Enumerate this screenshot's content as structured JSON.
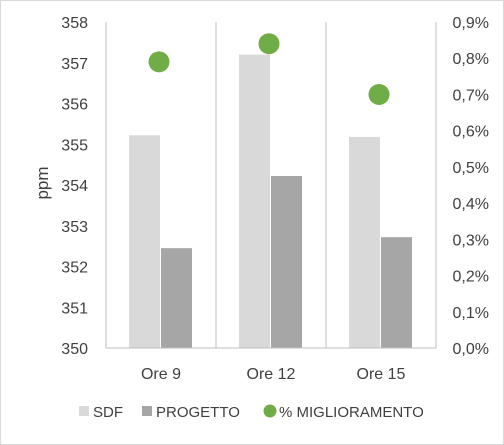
{
  "chart_data": {
    "type": "bar",
    "categories": [
      "Ore 9",
      "Ore 12",
      "Ore 15"
    ],
    "series": [
      {
        "name": "SDF",
        "type": "bar",
        "axis": "left",
        "color": "#d9d9d9",
        "values": [
          355.22,
          357.2,
          355.18
        ]
      },
      {
        "name": "PROGETTO",
        "type": "bar",
        "axis": "left",
        "color": "#a6a6a6",
        "values": [
          352.45,
          354.22,
          352.72
        ]
      },
      {
        "name": "% MIGLIORAMENTO",
        "type": "scatter",
        "axis": "right",
        "color": "#70ad47",
        "values": [
          0.79,
          0.84,
          0.7
        ]
      }
    ],
    "ylabel": "ppm",
    "ylim": [
      350,
      358
    ],
    "yticks": [
      "350",
      "351",
      "352",
      "353",
      "354",
      "355",
      "356",
      "357",
      "358"
    ],
    "y2lim": [
      0,
      0.9
    ],
    "y2ticks": [
      "0,0%",
      "0,1%",
      "0,2%",
      "0,3%",
      "0,4%",
      "0,5%",
      "0,6%",
      "0,7%",
      "0,8%",
      "0,9%"
    ],
    "grid": "vertical category separators",
    "legend": "bottom",
    "colors": {
      "axis": "#bfbfbf",
      "border": "#d9d9d9",
      "text": "#404040"
    }
  }
}
